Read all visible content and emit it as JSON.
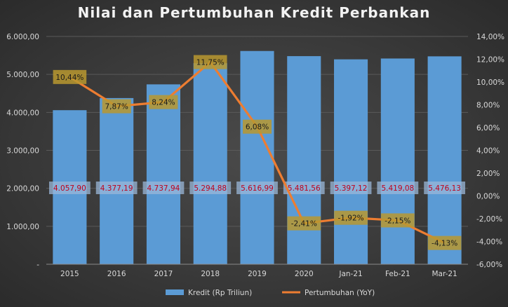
{
  "chart_data": {
    "type": "bar",
    "title": "Nilai dan Pertumbuhan Kredit Perbankan",
    "categories": [
      "2015",
      "2016",
      "2017",
      "2018",
      "2019",
      "2020",
      "Jan-21",
      "Feb-21",
      "Mar-21"
    ],
    "series": [
      {
        "name": "Kredit (Rp Triliun)",
        "type": "bar",
        "axis": "left",
        "color": "#5b9bd5",
        "values": [
          4057.9,
          4377.19,
          4737.94,
          5294.88,
          5616.99,
          5481.56,
          5397.12,
          5419.08,
          5476.13
        ],
        "labels": [
          "4.057,90",
          "4.377,19",
          "4.737,94",
          "5.294,88",
          "5.616,99",
          "5.481,56",
          "5.397,12",
          "5.419,08",
          "5.476,13"
        ]
      },
      {
        "name": "Pertumbuhan (YoY)",
        "type": "line",
        "axis": "right",
        "color": "#ed7d31",
        "values": [
          10.44,
          7.87,
          8.24,
          11.75,
          6.08,
          -2.41,
          -1.92,
          -2.15,
          -4.13
        ],
        "labels": [
          "10,44%",
          "7,87%",
          "8,24%",
          "11,75%",
          "6,08%",
          "-2,41%",
          "-1,92%",
          "-2,15%",
          "-4,13%"
        ]
      }
    ],
    "y_left": {
      "min": 0,
      "max": 6000,
      "ticks": [
        0,
        1000,
        2000,
        3000,
        4000,
        5000,
        6000
      ],
      "tick_labels": [
        "-",
        "1.000,00",
        "2.000,00",
        "3.000,00",
        "4.000,00",
        "5.000,00",
        "6.000,00"
      ]
    },
    "y_right": {
      "min": -6,
      "max": 14,
      "ticks": [
        -6,
        -4,
        -2,
        0,
        2,
        4,
        6,
        8,
        10,
        12,
        14
      ],
      "tick_labels": [
        "-6,00%",
        "-4,00%",
        "-2,00%",
        "0,00%",
        "2,00%",
        "4,00%",
        "6,00%",
        "8,00%",
        "10,00%",
        "12,00%",
        "14,00%"
      ]
    },
    "legend": {
      "position": "bottom"
    },
    "grid": true,
    "colors": {
      "background": "#3a3a3a",
      "bar_label_text": "#c0001a",
      "bar_label_box": "#9ab7d8",
      "line_label_text": "#1a1a1a",
      "line_label_box": "#b8982f",
      "axis_text": "#d9d9d9"
    }
  }
}
